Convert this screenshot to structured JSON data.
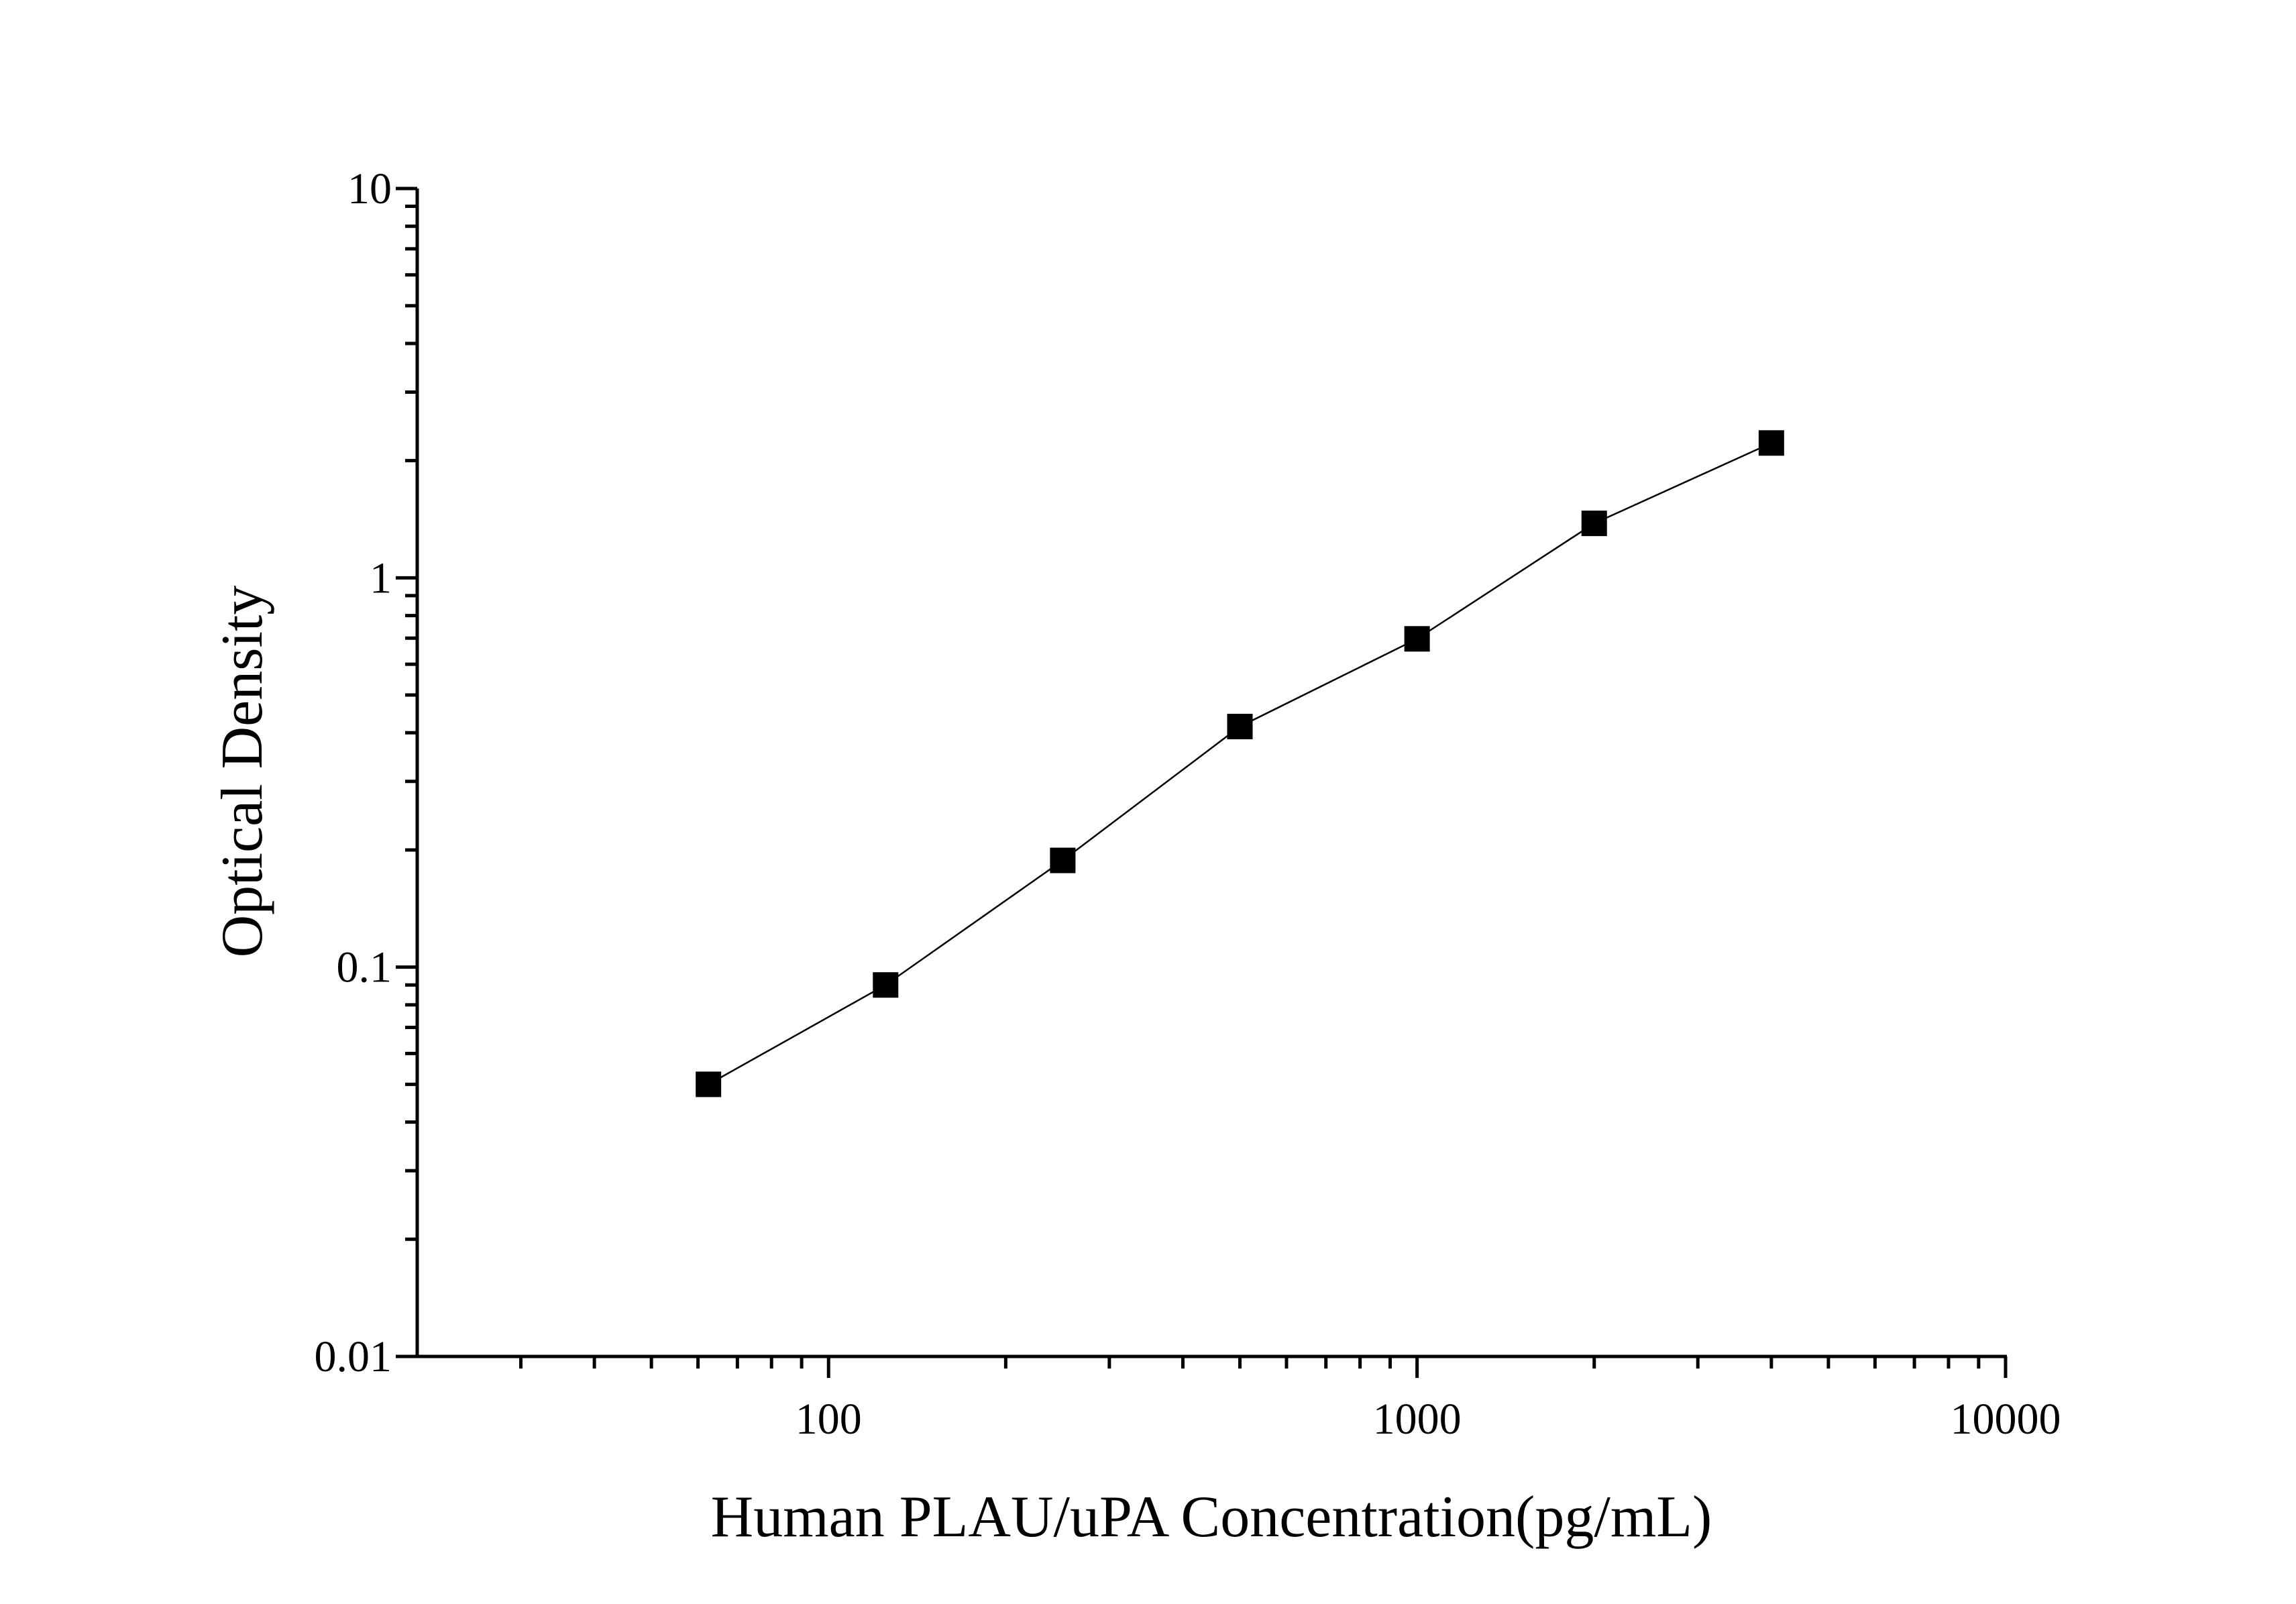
{
  "chart_data": {
    "type": "scatter",
    "x_label": "Human PLAU/uPA Concentration(pg/mL)",
    "y_label": "Optical Density",
    "x": [
      62.5,
      125,
      250,
      500,
      1000,
      2000,
      4000
    ],
    "series": [
      {
        "color": "#000000",
        "values": [
          0.05,
          0.09,
          0.188,
          0.415,
          0.697,
          1.38,
          2.22
        ]
      }
    ],
    "xlim": [
      20,
      10000
    ],
    "ylim": [
      0.01,
      10
    ],
    "xticks": [
      100,
      1000,
      10000
    ],
    "yticks": [
      0.01,
      0.1,
      1,
      10
    ],
    "xscale": "log",
    "yscale": "log",
    "connect": true,
    "minor_ticks": true
  }
}
